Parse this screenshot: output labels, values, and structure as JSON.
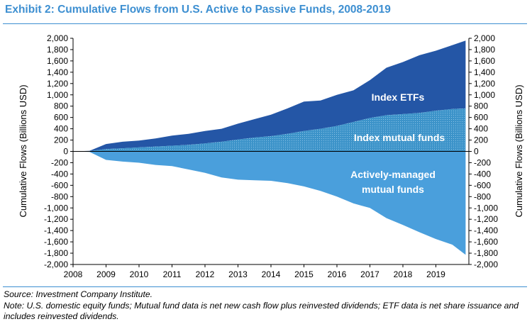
{
  "header": {
    "title": "Exhibit 2: Cumulative Flows from U.S. Active to Passive Funds, 2008-2019"
  },
  "footer": {
    "source": "Source: Investment Company Institute.",
    "note": "Note: U.S. domestic equity funds; Mutual fund data is net new cash flow plus reinvested dividends; ETF data is net share issuance and includes reinvested dividends."
  },
  "colors": {
    "title": "#3d8fd1",
    "etf": "#2456a6",
    "index_mf": "#3c93c9",
    "active": "#4a9fdc"
  },
  "chart_data": {
    "type": "area",
    "ylabel": "Cumulative Flows (Billions USD)",
    "ylim": [
      -2000,
      2000
    ],
    "yticks": [
      2000,
      1800,
      1600,
      1400,
      1200,
      1000,
      800,
      600,
      400,
      200,
      0,
      -200,
      -400,
      -600,
      -800,
      -1000,
      -1200,
      -1400,
      -1600,
      -1800,
      -2000
    ],
    "ytick_labels": [
      "2,000",
      "1,800",
      "1,600",
      "1,400",
      "1,200",
      "1,000",
      "800",
      "600",
      "400",
      "200",
      "0",
      "-200",
      "-400",
      "-600",
      "-800",
      "-1,000",
      "-1,200",
      "-1,400",
      "-1,600",
      "-1,800",
      "-2,000"
    ],
    "xlim": [
      2008,
      2020
    ],
    "xticks": [
      2008,
      2009,
      2010,
      2011,
      2012,
      2013,
      2014,
      2015,
      2016,
      2017,
      2018,
      2019
    ],
    "xtick_labels": [
      "2008",
      "2009",
      "2010",
      "2011",
      "2012",
      "2013",
      "2014",
      "2015",
      "2016",
      "2017",
      "2018",
      "2019"
    ],
    "x": [
      2008.0,
      2008.5,
      2009.0,
      2009.5,
      2010.0,
      2010.5,
      2011.0,
      2011.5,
      2012.0,
      2012.5,
      2013.0,
      2013.5,
      2014.0,
      2014.5,
      2015.0,
      2015.5,
      2016.0,
      2016.5,
      2017.0,
      2017.5,
      2018.0,
      2018.5,
      2019.0,
      2019.5,
      2019.9
    ],
    "series": [
      {
        "name": "Index ETFs",
        "values": [
          0,
          10,
          130,
          170,
          190,
          230,
          280,
          310,
          360,
          400,
          490,
          570,
          650,
          760,
          880,
          900,
          1000,
          1080,
          1260,
          1480,
          1580,
          1700,
          1780,
          1880,
          1960
        ]
      },
      {
        "name": "Index mutual funds",
        "values": [
          0,
          5,
          40,
          55,
          70,
          85,
          100,
          115,
          140,
          170,
          210,
          245,
          270,
          310,
          360,
          400,
          450,
          520,
          590,
          640,
          660,
          680,
          720,
          750,
          760
        ]
      },
      {
        "name": "Actively-managed mutual funds",
        "values": [
          0,
          -10,
          -150,
          -180,
          -200,
          -240,
          -260,
          -320,
          -380,
          -460,
          -500,
          -510,
          -520,
          -560,
          -620,
          -700,
          -800,
          -920,
          -1000,
          -1180,
          -1300,
          -1430,
          -1550,
          -1650,
          -1830
        ]
      }
    ],
    "annotations": [
      "Index ETFs",
      "Index mutual funds",
      "Actively-managed",
      "mutual funds"
    ]
  }
}
